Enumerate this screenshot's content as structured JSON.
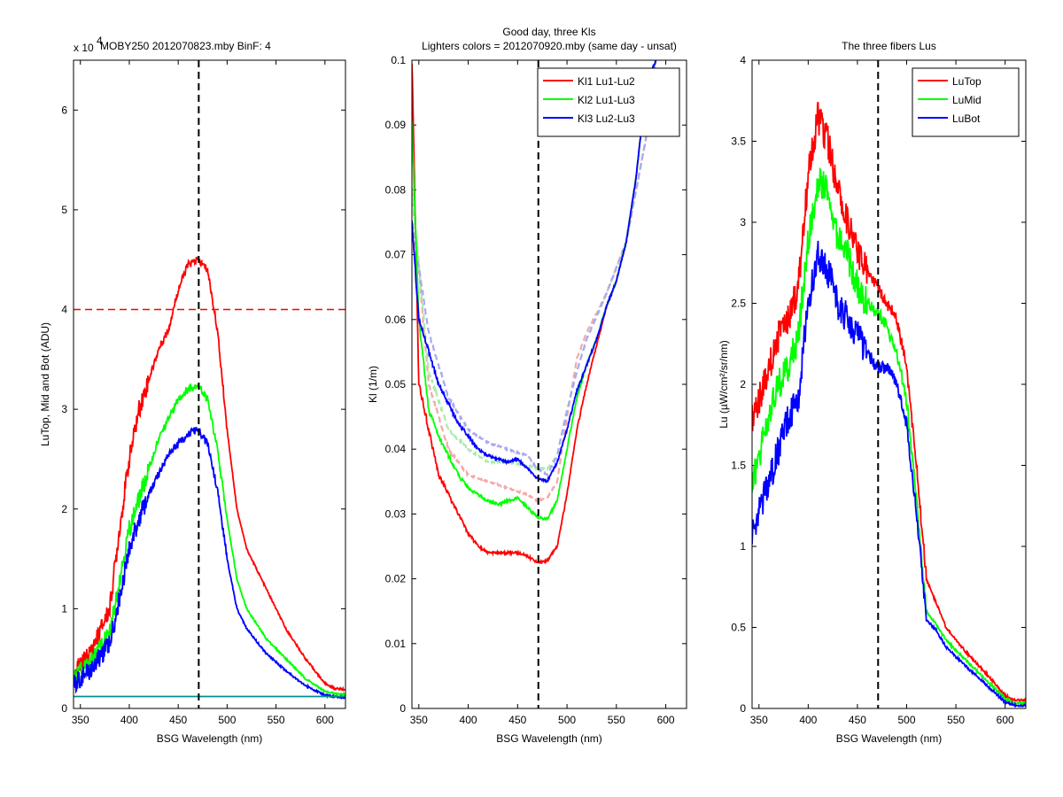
{
  "chart_data": [
    {
      "type": "line",
      "title": "MOBY250  2012070823.mby BinF: 4",
      "exponent_label": "x 10",
      "exponent_power": "4",
      "xlabel": "BSG Wavelength (nm)",
      "ylabel": "LuTop, Mid and Bot (ADU)",
      "xlim": [
        343,
        621
      ],
      "ylim": [
        0,
        65000
      ],
      "xticks": [
        350,
        400,
        450,
        500,
        550,
        600
      ],
      "yticks": [
        0,
        10000,
        20000,
        30000,
        40000,
        50000,
        60000
      ],
      "ytick_labels": [
        "0",
        "1",
        "2",
        "3",
        "4",
        "5",
        "6"
      ],
      "series": [
        {
          "color": "#ff0000",
          "x": [
            343,
            360,
            380,
            390,
            400,
            410,
            420,
            430,
            440,
            450,
            460,
            470,
            480,
            490,
            500,
            510,
            520,
            540,
            560,
            580,
            600,
            610,
            621
          ],
          "y": [
            3500,
            5500,
            10000,
            18000,
            25000,
            30000,
            33000,
            36000,
            38000,
            42000,
            44500,
            45000,
            44000,
            38000,
            28000,
            20000,
            16000,
            12000,
            8000,
            5000,
            2500,
            2000,
            1900
          ]
        },
        {
          "color": "#00ff00",
          "x": [
            343,
            360,
            380,
            390,
            400,
            410,
            420,
            430,
            440,
            450,
            460,
            470,
            480,
            490,
            500,
            510,
            520,
            540,
            560,
            580,
            600,
            610,
            621
          ],
          "y": [
            3000,
            4500,
            7500,
            13000,
            18000,
            21000,
            24000,
            27000,
            29000,
            31000,
            32000,
            32500,
            31000,
            26000,
            19000,
            13000,
            10000,
            7000,
            5000,
            3000,
            1700,
            1500,
            1400
          ]
        },
        {
          "color": "#0000ff",
          "x": [
            343,
            360,
            380,
            390,
            400,
            410,
            420,
            430,
            440,
            450,
            460,
            470,
            480,
            490,
            500,
            510,
            520,
            540,
            560,
            580,
            600,
            610,
            621
          ],
          "y": [
            2500,
            3800,
            6500,
            11000,
            16000,
            19000,
            21500,
            23500,
            25500,
            26500,
            27500,
            28000,
            26500,
            22000,
            15000,
            10000,
            8000,
            5500,
            3800,
            2300,
            1300,
            1200,
            1100
          ]
        },
        {
          "color": "#009090",
          "x": [
            343,
            621
          ],
          "y": [
            1200,
            1200
          ]
        }
      ],
      "ref_lines": [
        {
          "orient": "v",
          "value": 471,
          "color": "#000000"
        },
        {
          "orient": "h",
          "value": 40000,
          "color": "#ff0000"
        }
      ]
    },
    {
      "type": "line",
      "title": "Good day, three Kls",
      "subtitle": "Lighters colors = 2012070920.mby (same day - unsat)",
      "xlabel": "BSG Wavelength (nm)",
      "ylabel": "Kl (1/m)",
      "xlim": [
        343,
        621
      ],
      "ylim": [
        0,
        0.1
      ],
      "xticks": [
        350,
        400,
        450,
        500,
        550,
        600
      ],
      "yticks": [
        0,
        0.01,
        0.02,
        0.03,
        0.04,
        0.05,
        0.06,
        0.07,
        0.08,
        0.09,
        0.1
      ],
      "ytick_labels": [
        "0",
        "0.01",
        "0.02",
        "0.03",
        "0.04",
        "0.05",
        "0.06",
        "0.07",
        "0.08",
        "0.09",
        "0.1"
      ],
      "legend": {
        "position": "top-right",
        "entries": [
          "Kl1 Lu1-Lu2",
          "Kl2 Lu1-Lu3",
          "Kl3 Lu2-Lu3"
        ]
      },
      "series": [
        {
          "name": "Kl1 Lu1-Lu2",
          "color": "#ff0000",
          "x": [
            343,
            350,
            360,
            370,
            380,
            390,
            400,
            410,
            420,
            430,
            440,
            450,
            460,
            470,
            480,
            490,
            500,
            510,
            520,
            530,
            540,
            550,
            560,
            570,
            580,
            590
          ],
          "y": [
            0.1,
            0.05,
            0.043,
            0.036,
            0.033,
            0.03,
            0.027,
            0.025,
            0.024,
            0.024,
            0.024,
            0.024,
            0.0235,
            0.0225,
            0.0228,
            0.025,
            0.033,
            0.043,
            0.05,
            0.056,
            0.062,
            0.066,
            0.072,
            0.082,
            0.096,
            0.1
          ]
        },
        {
          "name": "Kl2 Lu1-Lu3",
          "color": "#00ff00",
          "x": [
            343,
            350,
            360,
            370,
            380,
            390,
            400,
            410,
            420,
            430,
            440,
            450,
            460,
            470,
            480,
            490,
            500,
            510,
            520,
            530,
            540,
            550,
            560,
            570,
            580,
            590
          ],
          "y": [
            0.09,
            0.06,
            0.046,
            0.042,
            0.039,
            0.036,
            0.034,
            0.033,
            0.032,
            0.0315,
            0.032,
            0.0325,
            0.031,
            0.0295,
            0.0292,
            0.032,
            0.04,
            0.048,
            0.053,
            0.057,
            0.062,
            0.066,
            0.072,
            0.082,
            0.096,
            0.1
          ]
        },
        {
          "name": "Kl3 Lu2-Lu3",
          "color": "#0000ff",
          "x": [
            343,
            350,
            360,
            370,
            380,
            390,
            400,
            410,
            420,
            430,
            440,
            450,
            460,
            470,
            480,
            490,
            500,
            510,
            520,
            530,
            540,
            550,
            560,
            570,
            580,
            590
          ],
          "y": [
            0.075,
            0.06,
            0.055,
            0.05,
            0.047,
            0.044,
            0.042,
            0.04,
            0.039,
            0.0385,
            0.038,
            0.0385,
            0.037,
            0.0355,
            0.035,
            0.038,
            0.043,
            0.049,
            0.053,
            0.057,
            0.062,
            0.066,
            0.072,
            0.082,
            0.096,
            0.1
          ]
        },
        {
          "color": "#f4a8a8",
          "dash": true,
          "x": [
            343,
            360,
            380,
            400,
            420,
            440,
            460,
            470,
            480,
            490,
            500,
            510,
            520,
            540,
            560,
            580,
            590
          ],
          "y": [
            0.08,
            0.05,
            0.04,
            0.036,
            0.035,
            0.034,
            0.033,
            0.032,
            0.0325,
            0.035,
            0.045,
            0.054,
            0.058,
            0.064,
            0.072,
            0.088,
            0.1
          ]
        },
        {
          "color": "#a8eca8",
          "dash": true,
          "x": [
            343,
            360,
            380,
            400,
            420,
            440,
            460,
            470,
            480,
            490,
            500,
            510,
            520,
            540,
            560,
            580,
            590
          ],
          "y": [
            0.08,
            0.052,
            0.043,
            0.04,
            0.038,
            0.038,
            0.0375,
            0.037,
            0.037,
            0.039,
            0.046,
            0.052,
            0.057,
            0.064,
            0.072,
            0.088,
            0.1
          ]
        },
        {
          "color": "#a8a8f4",
          "dash": true,
          "x": [
            343,
            360,
            380,
            400,
            420,
            440,
            460,
            470,
            480,
            490,
            500,
            510,
            520,
            540,
            560,
            580,
            590
          ],
          "y": [
            0.075,
            0.058,
            0.048,
            0.043,
            0.041,
            0.04,
            0.039,
            0.037,
            0.036,
            0.039,
            0.046,
            0.052,
            0.057,
            0.064,
            0.072,
            0.088,
            0.1
          ]
        }
      ],
      "ref_lines": [
        {
          "orient": "v",
          "value": 471,
          "color": "#000000"
        }
      ]
    },
    {
      "type": "line",
      "title": "The three fibers Lus",
      "xlabel": "BSG Wavelength (nm)",
      "ylabel": "Lu (µW/cm²/sr/nm)",
      "xlim": [
        343,
        621
      ],
      "ylim": [
        0,
        4
      ],
      "xticks": [
        350,
        400,
        450,
        500,
        550,
        600
      ],
      "yticks": [
        0,
        0.5,
        1,
        1.5,
        2,
        2.5,
        3,
        3.5,
        4
      ],
      "ytick_labels": [
        "0",
        "0.5",
        "1",
        "1.5",
        "2",
        "2.5",
        "3",
        "3.5",
        "4"
      ],
      "legend": {
        "position": "top-right",
        "entries": [
          "LuTop",
          "LuMid",
          "LuBot"
        ]
      },
      "series": [
        {
          "name": "LuTop",
          "color": "#ff0000",
          "x": [
            343,
            350,
            360,
            370,
            380,
            390,
            400,
            410,
            420,
            430,
            440,
            450,
            460,
            470,
            480,
            490,
            500,
            510,
            520,
            530,
            540,
            560,
            580,
            600,
            610,
            621
          ],
          "y": [
            1.8,
            1.9,
            2.1,
            2.3,
            2.4,
            2.6,
            3.3,
            3.65,
            3.5,
            3.2,
            3.0,
            2.8,
            2.7,
            2.6,
            2.5,
            2.4,
            2.1,
            1.5,
            0.8,
            0.65,
            0.5,
            0.35,
            0.22,
            0.08,
            0.05,
            0.05
          ]
        },
        {
          "name": "LuMid",
          "color": "#00ff00",
          "x": [
            343,
            350,
            360,
            370,
            380,
            390,
            400,
            410,
            420,
            430,
            440,
            450,
            460,
            470,
            480,
            490,
            500,
            510,
            520,
            530,
            540,
            560,
            580,
            600,
            610,
            621
          ],
          "y": [
            1.4,
            1.55,
            1.8,
            2.0,
            2.1,
            2.3,
            2.9,
            3.25,
            3.2,
            2.9,
            2.8,
            2.6,
            2.5,
            2.45,
            2.35,
            2.2,
            1.9,
            1.3,
            0.6,
            0.52,
            0.42,
            0.3,
            0.18,
            0.06,
            0.03,
            0.03
          ]
        },
        {
          "name": "LuBot",
          "color": "#0000ff",
          "x": [
            343,
            350,
            360,
            370,
            380,
            390,
            400,
            410,
            420,
            430,
            440,
            450,
            460,
            470,
            480,
            490,
            500,
            510,
            520,
            530,
            540,
            560,
            580,
            600,
            610,
            621
          ],
          "y": [
            1.05,
            1.2,
            1.4,
            1.6,
            1.8,
            1.9,
            2.5,
            2.8,
            2.7,
            2.5,
            2.4,
            2.3,
            2.2,
            2.1,
            2.1,
            2.0,
            1.75,
            1.2,
            0.55,
            0.48,
            0.38,
            0.26,
            0.15,
            0.04,
            0.02,
            0.02
          ]
        }
      ],
      "ref_lines": [
        {
          "orient": "v",
          "value": 471,
          "color": "#000000"
        }
      ]
    }
  ]
}
